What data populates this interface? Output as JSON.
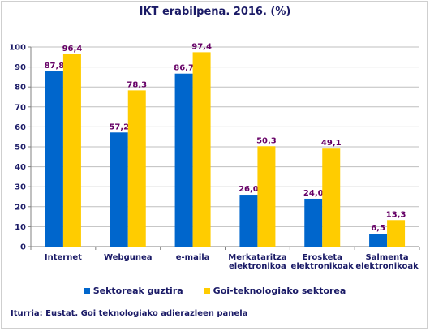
{
  "chart_data": {
    "type": "bar",
    "title": "IKT erabilpena. 2016. (%)",
    "categories": [
      [
        "Internet"
      ],
      [
        "Webgunea"
      ],
      [
        "e-maila"
      ],
      [
        "Merkataritza",
        "elektronikoa"
      ],
      [
        "Erosketa",
        "elektronikoak"
      ],
      [
        "Salmenta",
        "elektronikoak"
      ]
    ],
    "series": [
      {
        "name": "Sektoreak guztira",
        "color": "#0066cc",
        "values": [
          87.8,
          57.2,
          86.7,
          26.0,
          24.0,
          6.5
        ],
        "labels": [
          "87,8",
          "57,2",
          "86,7",
          "26,0",
          "24,0",
          "6,5"
        ]
      },
      {
        "name": "Goi-teknologiako sektorea",
        "color": "#ffcc00",
        "values": [
          96.4,
          78.3,
          97.4,
          50.3,
          49.1,
          13.3
        ],
        "labels": [
          "96,4",
          "78,3",
          "97,4",
          "50,3",
          "49,1",
          "13,3"
        ]
      }
    ],
    "ylim": [
      0,
      100
    ],
    "yticks": [
      0,
      10,
      20,
      30,
      40,
      50,
      60,
      70,
      80,
      90,
      100
    ],
    "grid": true,
    "legend_position": "bottom",
    "label_color": "#660066"
  },
  "legend": {
    "series_1": "Sektoreak guztira",
    "series_2": "Goi-teknologiako sektorea"
  },
  "source": "Iturria: Eustat. Goi teknologiako adierazleen panela"
}
